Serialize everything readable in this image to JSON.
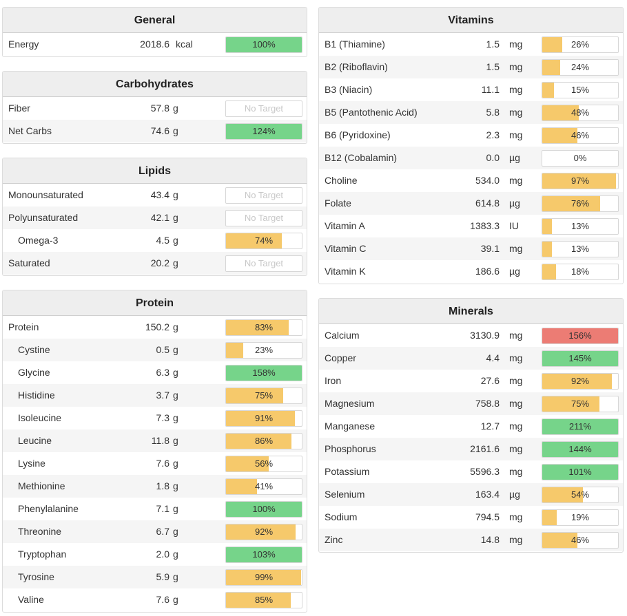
{
  "general": {
    "title": "General",
    "rows": [
      {
        "name": "Energy",
        "value": "2018.6",
        "unit": "kcal",
        "percent": 100,
        "label": "100%",
        "color": "green"
      }
    ]
  },
  "carbohydrates": {
    "title": "Carbohydrates",
    "rows": [
      {
        "name": "Fiber",
        "value": "57.8",
        "unit": "g",
        "percent": null,
        "label": "No Target",
        "color": "none"
      },
      {
        "name": "Net Carbs",
        "value": "74.6",
        "unit": "g",
        "percent": 124,
        "label": "124%",
        "color": "green"
      }
    ]
  },
  "lipids": {
    "title": "Lipids",
    "rows": [
      {
        "name": "Monounsaturated",
        "value": "43.4",
        "unit": "g",
        "percent": null,
        "label": "No Target",
        "color": "none"
      },
      {
        "name": "Polyunsaturated",
        "value": "42.1",
        "unit": "g",
        "percent": null,
        "label": "No Target",
        "color": "none"
      },
      {
        "name": "Omega-3",
        "value": "4.5",
        "unit": "g",
        "percent": 74,
        "label": "74%",
        "color": "yellow",
        "indent": true
      },
      {
        "name": "Saturated",
        "value": "20.2",
        "unit": "g",
        "percent": null,
        "label": "No Target",
        "color": "none"
      }
    ]
  },
  "protein": {
    "title": "Protein",
    "rows": [
      {
        "name": "Protein",
        "value": "150.2",
        "unit": "g",
        "percent": 83,
        "label": "83%",
        "color": "yellow"
      },
      {
        "name": "Cystine",
        "value": "0.5",
        "unit": "g",
        "percent": 23,
        "label": "23%",
        "color": "yellow",
        "indent": true
      },
      {
        "name": "Glycine",
        "value": "6.3",
        "unit": "g",
        "percent": 158,
        "label": "158%",
        "color": "green",
        "indent": true
      },
      {
        "name": "Histidine",
        "value": "3.7",
        "unit": "g",
        "percent": 75,
        "label": "75%",
        "color": "yellow",
        "indent": true
      },
      {
        "name": "Isoleucine",
        "value": "7.3",
        "unit": "g",
        "percent": 91,
        "label": "91%",
        "color": "yellow",
        "indent": true
      },
      {
        "name": "Leucine",
        "value": "11.8",
        "unit": "g",
        "percent": 86,
        "label": "86%",
        "color": "yellow",
        "indent": true
      },
      {
        "name": "Lysine",
        "value": "7.6",
        "unit": "g",
        "percent": 56,
        "label": "56%",
        "color": "yellow",
        "indent": true
      },
      {
        "name": "Methionine",
        "value": "1.8",
        "unit": "g",
        "percent": 41,
        "label": "41%",
        "color": "yellow",
        "indent": true
      },
      {
        "name": "Phenylalanine",
        "value": "7.1",
        "unit": "g",
        "percent": 100,
        "label": "100%",
        "color": "green",
        "indent": true
      },
      {
        "name": "Threonine",
        "value": "6.7",
        "unit": "g",
        "percent": 92,
        "label": "92%",
        "color": "yellow",
        "indent": true
      },
      {
        "name": "Tryptophan",
        "value": "2.0",
        "unit": "g",
        "percent": 103,
        "label": "103%",
        "color": "green",
        "indent": true
      },
      {
        "name": "Tyrosine",
        "value": "5.9",
        "unit": "g",
        "percent": 99,
        "label": "99%",
        "color": "yellow",
        "indent": true
      },
      {
        "name": "Valine",
        "value": "7.6",
        "unit": "g",
        "percent": 85,
        "label": "85%",
        "color": "yellow",
        "indent": true
      }
    ]
  },
  "vitamins": {
    "title": "Vitamins",
    "rows": [
      {
        "name": "B1 (Thiamine)",
        "value": "1.5",
        "unit": "mg",
        "percent": 26,
        "label": "26%",
        "color": "yellow"
      },
      {
        "name": "B2 (Riboflavin)",
        "value": "1.5",
        "unit": "mg",
        "percent": 24,
        "label": "24%",
        "color": "yellow"
      },
      {
        "name": "B3 (Niacin)",
        "value": "11.1",
        "unit": "mg",
        "percent": 15,
        "label": "15%",
        "color": "yellow"
      },
      {
        "name": "B5 (Pantothenic Acid)",
        "value": "5.8",
        "unit": "mg",
        "percent": 48,
        "label": "48%",
        "color": "yellow"
      },
      {
        "name": "B6 (Pyridoxine)",
        "value": "2.3",
        "unit": "mg",
        "percent": 46,
        "label": "46%",
        "color": "yellow"
      },
      {
        "name": "B12 (Cobalamin)",
        "value": "0.0",
        "unit": "µg",
        "percent": 0,
        "label": "0%",
        "color": "yellow"
      },
      {
        "name": "Choline",
        "value": "534.0",
        "unit": "mg",
        "percent": 97,
        "label": "97%",
        "color": "yellow"
      },
      {
        "name": "Folate",
        "value": "614.8",
        "unit": "µg",
        "percent": 76,
        "label": "76%",
        "color": "yellow"
      },
      {
        "name": "Vitamin A",
        "value": "1383.3",
        "unit": "IU",
        "percent": 13,
        "label": "13%",
        "color": "yellow"
      },
      {
        "name": "Vitamin C",
        "value": "39.1",
        "unit": "mg",
        "percent": 13,
        "label": "13%",
        "color": "yellow"
      },
      {
        "name": "Vitamin K",
        "value": "186.6",
        "unit": "µg",
        "percent": 18,
        "label": "18%",
        "color": "yellow"
      }
    ]
  },
  "minerals": {
    "title": "Minerals",
    "rows": [
      {
        "name": "Calcium",
        "value": "3130.9",
        "unit": "mg",
        "percent": 156,
        "label": "156%",
        "color": "red"
      },
      {
        "name": "Copper",
        "value": "4.4",
        "unit": "mg",
        "percent": 145,
        "label": "145%",
        "color": "green"
      },
      {
        "name": "Iron",
        "value": "27.6",
        "unit": "mg",
        "percent": 92,
        "label": "92%",
        "color": "yellow"
      },
      {
        "name": "Magnesium",
        "value": "758.8",
        "unit": "mg",
        "percent": 75,
        "label": "75%",
        "color": "yellow"
      },
      {
        "name": "Manganese",
        "value": "12.7",
        "unit": "mg",
        "percent": 211,
        "label": "211%",
        "color": "green"
      },
      {
        "name": "Phosphorus",
        "value": "2161.6",
        "unit": "mg",
        "percent": 144,
        "label": "144%",
        "color": "green"
      },
      {
        "name": "Potassium",
        "value": "5596.3",
        "unit": "mg",
        "percent": 101,
        "label": "101%",
        "color": "green"
      },
      {
        "name": "Selenium",
        "value": "163.4",
        "unit": "µg",
        "percent": 54,
        "label": "54%",
        "color": "yellow"
      },
      {
        "name": "Sodium",
        "value": "794.5",
        "unit": "mg",
        "percent": 19,
        "label": "19%",
        "color": "yellow"
      },
      {
        "name": "Zinc",
        "value": "14.8",
        "unit": "mg",
        "percent": 46,
        "label": "46%",
        "color": "yellow"
      }
    ]
  },
  "colors": {
    "green": "#76d48a",
    "yellow": "#f6c96b",
    "red": "#ec7c74"
  }
}
